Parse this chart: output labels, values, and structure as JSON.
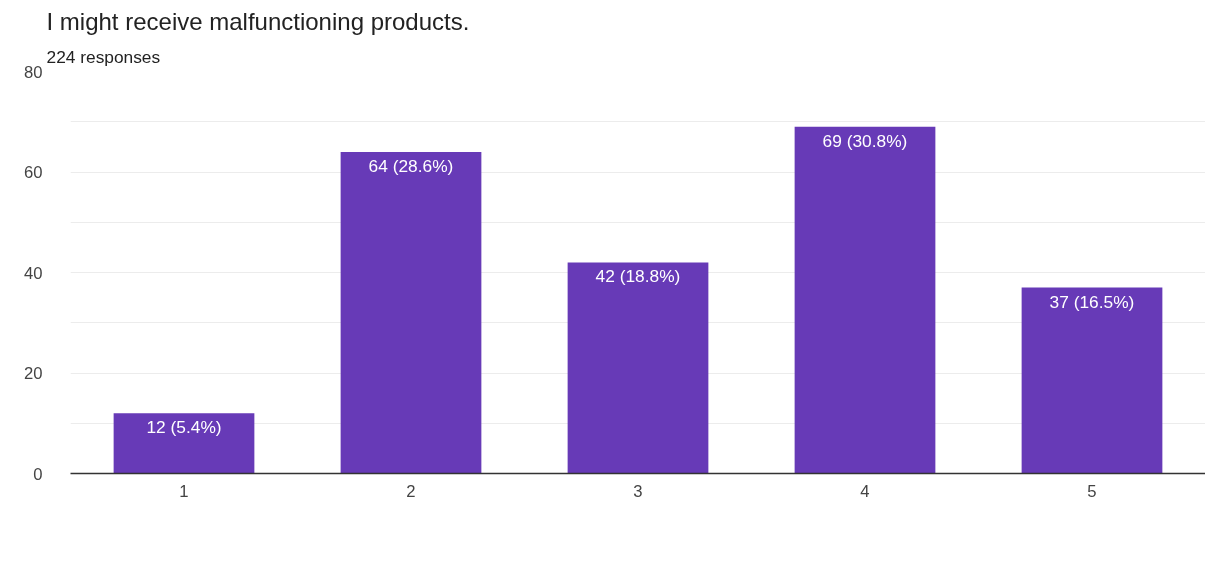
{
  "chart_data": {
    "type": "bar",
    "title": "I might receive malfunctioning products.",
    "subtitle": "224 responses",
    "categories": [
      "1",
      "2",
      "3",
      "4",
      "5"
    ],
    "values": [
      12,
      64,
      42,
      69,
      37
    ],
    "value_labels": [
      "12 (5.4%)",
      "64 (28.6%)",
      "42 (18.8%)",
      "69 (30.8%)",
      "37 (16.5%)"
    ],
    "color": "#673ab7",
    "ylim": [
      0,
      80
    ],
    "yticks": [
      0,
      {
        "value": 10,
        "label": null
      },
      20,
      {
        "value": 30,
        "label": null
      },
      40,
      {
        "value": 50,
        "label": null
      },
      60,
      {
        "value": 70,
        "label": null
      },
      80
    ],
    "grid": "y"
  }
}
